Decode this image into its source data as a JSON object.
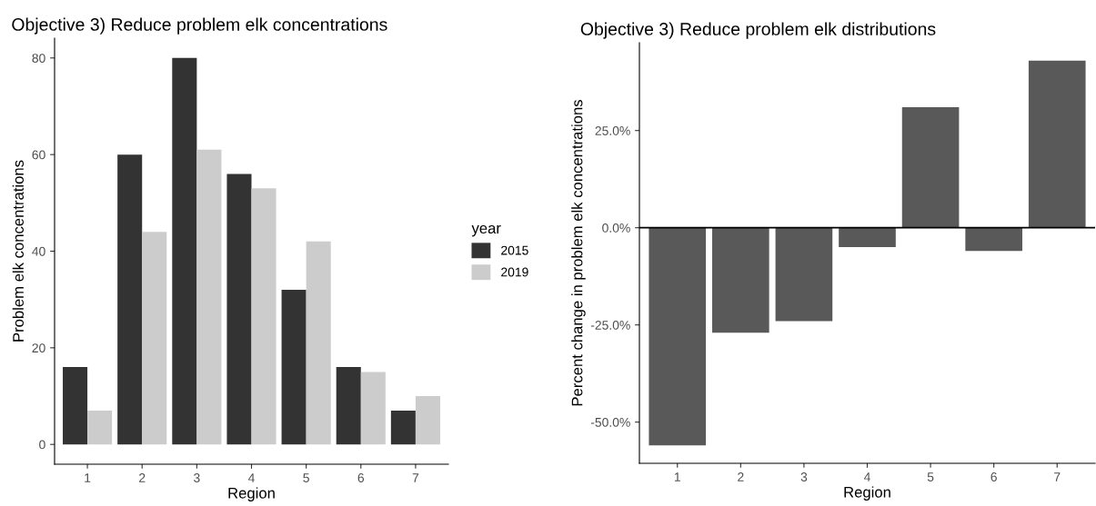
{
  "chart_data": [
    {
      "type": "bar",
      "title": "Objective 3) Reduce problem elk concentrations",
      "xlabel": "Region",
      "ylabel": "Problem elk concentrations",
      "legend_title": "year",
      "categories": [
        "1",
        "2",
        "3",
        "4",
        "5",
        "6",
        "7"
      ],
      "series": [
        {
          "name": "2015",
          "color": "#333333",
          "values": [
            16,
            60,
            80,
            56,
            32,
            16,
            7
          ]
        },
        {
          "name": "2019",
          "color": "#cccccc",
          "values": [
            7,
            44,
            61,
            53,
            42,
            15,
            10
          ]
        }
      ],
      "ylim": [
        -4.1,
        84.1
      ],
      "yticks": [
        0,
        20,
        40,
        60,
        80
      ],
      "grid": false,
      "legend": "right"
    },
    {
      "type": "bar",
      "title": "Objective 3) Reduce problem elk distributions",
      "xlabel": "Region",
      "ylabel": "Percent change in problem elk concentrations",
      "categories": [
        "1",
        "2",
        "3",
        "4",
        "5",
        "6",
        "7"
      ],
      "series": [
        {
          "color": "#595959",
          "values": [
            -56,
            -27,
            -24,
            -5,
            31,
            -6,
            43
          ]
        }
      ],
      "ylim": [
        -60.6,
        47.6
      ],
      "yticks": [
        {
          "value": -50,
          "label": "-50.0%"
        },
        {
          "value": -25,
          "label": "-25.0%"
        },
        {
          "value": 0,
          "label": "0.0%"
        },
        {
          "value": 25,
          "label": "25.0%"
        }
      ],
      "ref_lines": [
        {
          "axis": "y",
          "value": 0,
          "color": "#000000"
        }
      ],
      "grid": false,
      "legend": false
    }
  ]
}
